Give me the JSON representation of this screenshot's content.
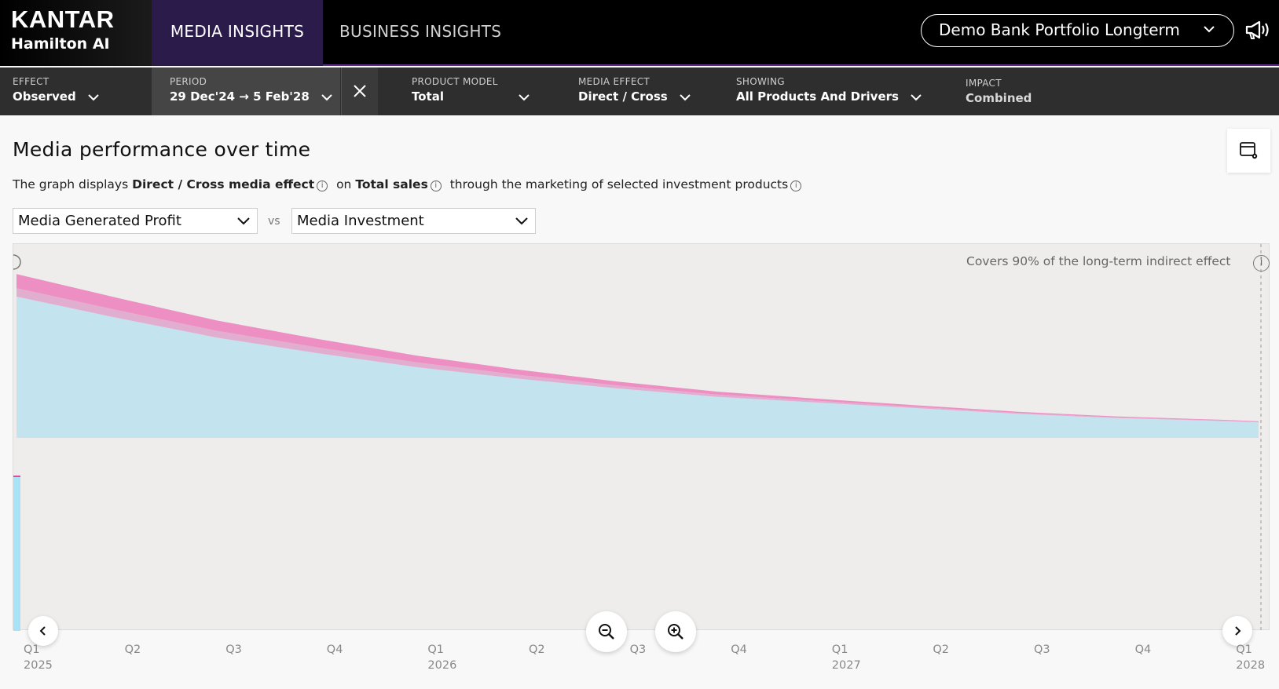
{
  "brand": {
    "name": "KANTAR",
    "product": "Hamilton AI"
  },
  "nav": {
    "tabs": [
      {
        "label": "MEDIA INSIGHTS",
        "active": true
      },
      {
        "label": "BUSINESS INSIGHTS",
        "active": false
      }
    ]
  },
  "portfolio": {
    "label": "Demo Bank Portfolio Longterm"
  },
  "filters": {
    "effect": {
      "label": "EFFECT",
      "value": "Observed"
    },
    "period": {
      "label": "PERIOD",
      "value": "29 Dec'24 → 5 Feb'28"
    },
    "product_model": {
      "label": "PRODUCT MODEL",
      "value": "Total"
    },
    "media_effect": {
      "label": "MEDIA EFFECT",
      "value": "Direct / Cross"
    },
    "showing": {
      "label": "SHOWING",
      "value": "All Products And Drivers"
    },
    "impact": {
      "label": "IMPACT",
      "value": "Combined"
    }
  },
  "main": {
    "title": "Media performance over time",
    "desc": {
      "p1": "The graph displays",
      "b1": "Direct / Cross media effect",
      "p2": "on",
      "b2": "Total sales",
      "p3": "through the marketing of selected investment products"
    },
    "metric_left": "Media Generated Profit",
    "vs": "vs",
    "metric_right": "Media Investment",
    "covers_note": "Covers 90% of the long-term indirect effect"
  },
  "chart_data": {
    "type": "area",
    "x_ticks": [
      {
        "q": "Q1",
        "year": "2025"
      },
      {
        "q": "Q2",
        "year": ""
      },
      {
        "q": "Q3",
        "year": ""
      },
      {
        "q": "Q4",
        "year": ""
      },
      {
        "q": "Q1",
        "year": "2026"
      },
      {
        "q": "Q2",
        "year": ""
      },
      {
        "q": "Q3",
        "year": ""
      },
      {
        "q": "Q4",
        "year": ""
      },
      {
        "q": "Q1",
        "year": "2027"
      },
      {
        "q": "Q2",
        "year": ""
      },
      {
        "q": "Q3",
        "year": ""
      },
      {
        "q": "Q4",
        "year": ""
      },
      {
        "q": "Q1",
        "year": "2028"
      }
    ],
    "x_quarters": [
      0,
      0.25,
      0.5,
      0.75,
      1,
      1.25,
      1.5,
      1.75,
      2,
      2.25,
      2.5,
      2.75,
      3,
      3.1
    ],
    "series": [
      {
        "color": "#c3e3ef",
        "values": [
          1.0,
          0.85,
          0.71,
          0.6,
          0.5,
          0.42,
          0.35,
          0.29,
          0.25,
          0.21,
          0.17,
          0.14,
          0.12,
          0.11
        ]
      },
      {
        "color": "#e2aed0",
        "values": [
          0.06,
          0.055,
          0.048,
          0.041,
          0.034,
          0.027,
          0.021,
          0.016,
          0.012,
          0.009,
          0.007,
          0.005,
          0.004,
          0.004
        ]
      },
      {
        "color": "#ee8fc3",
        "values": [
          0.1,
          0.087,
          0.073,
          0.06,
          0.048,
          0.037,
          0.028,
          0.021,
          0.015,
          0.011,
          0.008,
          0.006,
          0.005,
          0.004
        ]
      }
    ],
    "investment": {
      "color": "#a8e2f7",
      "value": 0.35
    },
    "colors": {
      "long_term": "#c3e3ef",
      "indirect": "#e2aed0",
      "direct": "#ee8fc3",
      "investment": "#a8e2f7",
      "investment_marker": "#e34b9a"
    }
  }
}
